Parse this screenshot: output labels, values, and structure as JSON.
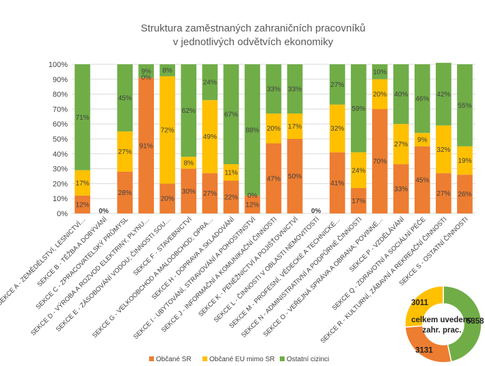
{
  "chart_data": [
    {
      "type": "bar",
      "stacked": true,
      "percent_stacked": true,
      "title": "Struktura zaměstnaných zahraničních pracovníků",
      "subtitle": "v jednotlivých odvětvích ekonomiky",
      "ylim": [
        0,
        100
      ],
      "y_ticks": [
        "0%",
        "10%",
        "20%",
        "30%",
        "40%",
        "50%",
        "60%",
        "70%",
        "80%",
        "90%",
        "100%"
      ],
      "grid": true,
      "legend_position": "bottom",
      "categories": [
        "SEKCE A - ZEMĚDĚLSTVÍ, LESNICTVÍ…",
        "SEKCE B - TĚŽBA A DOBÝVÁNÍ",
        "SEKCE C - ZPRACOVATELSKÝ PRŮMYSL",
        "SEKCE D - VÝROBA A ROZVOD ELEKTRINY, PLYNU…",
        "SEKCE E - ZÁSOBOVÁNÍ VODOU; ČINNOSTI SOU…",
        "SEKCE F - STAVEBNICTVÍ",
        "SEKCE G - VELKOOBCHOD A MALOOBCHOD; OPRA…",
        "SEKCE H - DOPRAVA A SKLADOVÁNÍ",
        "SEKCE I - UBYTOVÁNÍ, STRAVOVÁNÍ A POHOSTINSTVÍ",
        "SEKCE J - INFORMAČNÍ A KOMUNIKAČNÍ ČINNOSTI",
        "SEKCE K - PENĚŽNICTVÍ A POJIŠŤOVNICTVÍ",
        "SEKCE L - ČINNOSTI V OBLASTI NEMOVITOSTÍ",
        "SEKCE M - PROFESNÍ, VĚDECKÉ A TECHNICKÉ…",
        "SEKCE N - ADMINISTRATIVNÍ A PODPŮRNÉ ČINNOSTI",
        "SEKCE O - VEŘEJNÁ SPRÁVA A OBRANA; POVINNÉ…",
        "SEKCE P - VZDĚLÁVÁNÍ",
        "SEKCE Q - ZDRAVOTNÍ A SOCIÁLNÍ PÉČE",
        "SEKCE R - KULTURNÍ, ZÁBAVNÍ A REKREAČNÍ ČINNOSTI",
        "SEKCE S - OSTATNÍ ČINNOSTI"
      ],
      "series": [
        {
          "name": "Občané SR",
          "color": "#ED7D31",
          "values": [
            12,
            0,
            28,
            91,
            20,
            30,
            27,
            22,
            12,
            47,
            50,
            0,
            41,
            17,
            70,
            33,
            45,
            27,
            26
          ]
        },
        {
          "name": "Občané EU mimo SR",
          "color": "#FFC000",
          "values": [
            17,
            0,
            27,
            0,
            72,
            8,
            49,
            11,
            0,
            20,
            17,
            0,
            32,
            24,
            20,
            27,
            9,
            32,
            19
          ]
        },
        {
          "name": "Ostatní cizinci",
          "color": "#70AD47",
          "values": [
            71,
            0,
            45,
            9,
            8,
            62,
            24,
            67,
            88,
            33,
            33,
            0,
            27,
            59,
            10,
            40,
            46,
            42,
            55
          ]
        }
      ],
      "labels": [
        [
          "12%",
          "17%",
          "71%"
        ],
        [
          "0%"
        ],
        [
          "28%",
          "27%",
          "45%"
        ],
        [
          "91%",
          "0%",
          "9%"
        ],
        [
          "20%",
          "72%",
          "8%"
        ],
        [
          "30%",
          "8%",
          "62%"
        ],
        [
          "27%",
          "49%",
          "24%"
        ],
        [
          "22%",
          "11%",
          "67%"
        ],
        [
          "12%",
          "0%",
          "88%"
        ],
        [
          "47%",
          "20%",
          "33%"
        ],
        [
          "50%",
          "17%",
          "33%"
        ],
        [
          "0%"
        ],
        [
          "41%",
          "32%",
          "27%"
        ],
        [
          "17%",
          "24%",
          "59%"
        ],
        [
          "70%",
          "20%",
          "10%"
        ],
        [
          "33%",
          "27%",
          "40%"
        ],
        [
          "45%",
          "9%",
          "46%"
        ],
        [
          "27%",
          "32%",
          "42%"
        ],
        [
          "26%",
          "19%",
          "55%"
        ]
      ]
    },
    {
      "type": "pie",
      "center_label": "celkem uvedeno zahr. prac.",
      "center_lines": [
        "celkem uvedeno",
        "zahr. prac."
      ],
      "slices": [
        {
          "name": "Občané SR",
          "value": 3131,
          "label": "3131",
          "color": "#ED7D31"
        },
        {
          "name": "Občané EU mimo SR",
          "value": 3011,
          "label": "3011",
          "color": "#FFC000"
        },
        {
          "name": "Ostatní cizinci",
          "value": 5358,
          "label": "5358",
          "color": "#70AD47"
        }
      ]
    }
  ]
}
